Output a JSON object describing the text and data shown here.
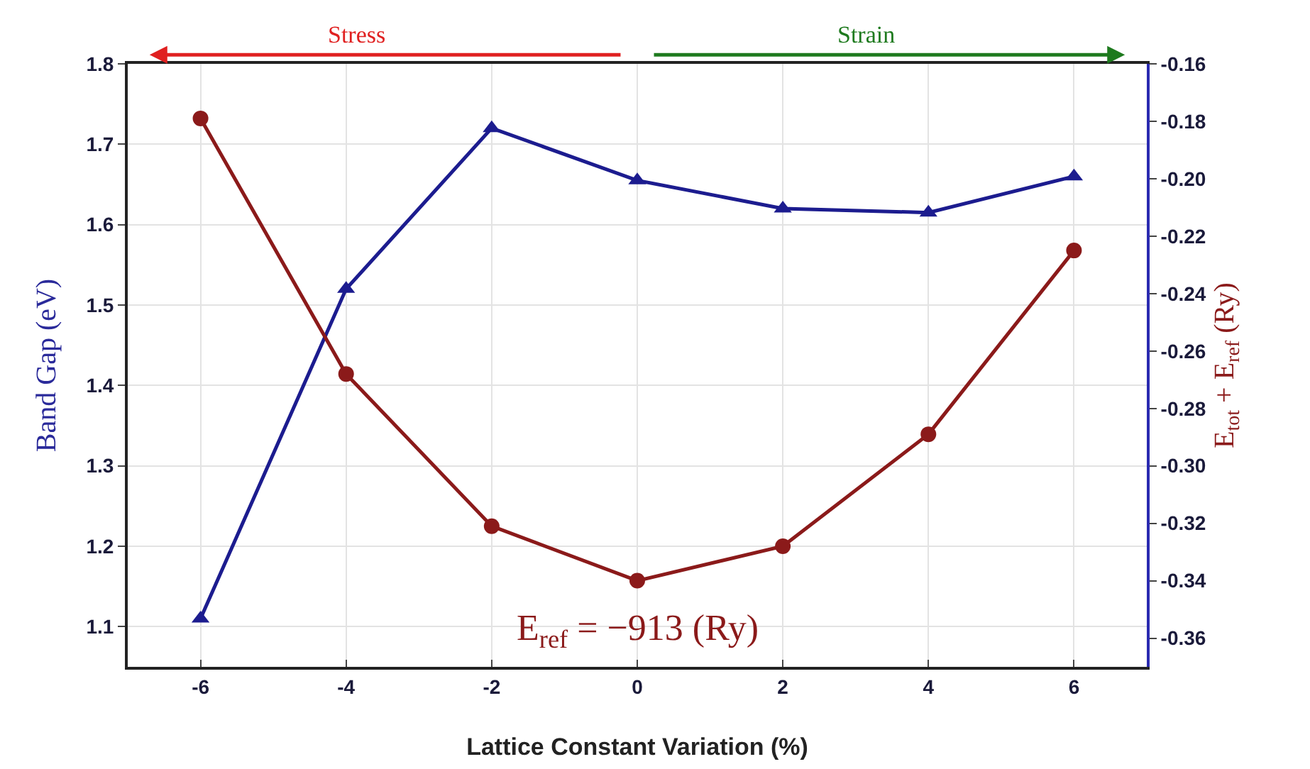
{
  "chart_data": {
    "type": "line",
    "xlabel": "Lattice Constant Variation (%)",
    "ylabel": "Band Gap (eV)",
    "y2label": "E$_{tot}$ + E$_{ref}$ (Ry)",
    "x": [
      -6,
      -4,
      -2,
      0,
      2,
      4,
      6
    ],
    "series": [
      {
        "color": "#1c1c8f",
        "values": [
          1.11,
          1.52,
          1.72,
          1.655,
          1.62,
          1.615,
          1.66
        ],
        "marker": "triangle"
      },
      {
        "color": "#8b1a1a",
        "values": [
          -0.179,
          -0.268,
          -0.321,
          -0.34,
          -0.328,
          -0.289,
          -0.225
        ],
        "marker": "circle",
        "axis": "y2"
      }
    ],
    "xlim": [
      -7,
      7
    ],
    "xticks": [
      -6,
      -4,
      -2,
      0,
      2,
      4,
      6
    ],
    "ylim": [
      1.05,
      1.8
    ],
    "yticks": [
      1.1,
      1.2,
      1.3,
      1.4,
      1.5,
      1.6,
      1.7,
      1.8
    ],
    "y2lim": [
      -0.37,
      -0.16
    ],
    "y2ticks": [
      -0.36,
      -0.34,
      -0.32,
      {
        "value": -0.3,
        "label": "-0.30"
      },
      -0.28,
      -0.26,
      -0.24,
      -0.22,
      {
        "value": -0.2,
        "label": "-0.20"
      },
      -0.18,
      -0.16
    ],
    "annotations": [
      "Stress",
      "Strain",
      "E$_{ref}$ = −913 (Ry)"
    ],
    "grid": true
  }
}
